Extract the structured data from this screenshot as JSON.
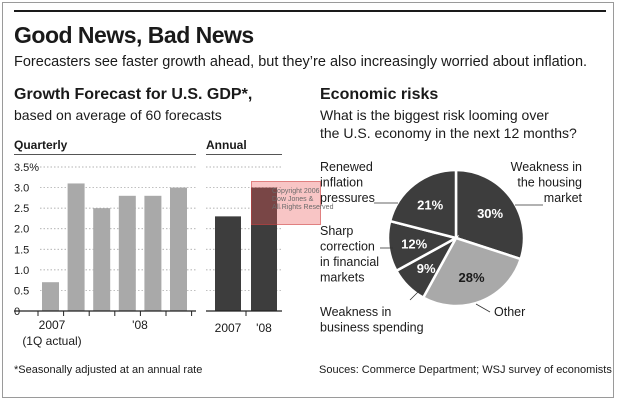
{
  "header": {
    "title": "Good News, Bad News",
    "subtitle": "Forecasters see faster growth ahead, but they’re also increasingly worried about inflation."
  },
  "gdp": {
    "title": "Growth Forecast for U.S. GDP*,",
    "subtitle": "based on average of 60 forecasts",
    "quarterly_label": "Quarterly",
    "annual_label": "Annual",
    "y_ticks": [
      "3.5%",
      "3.0",
      "2.5",
      "2.0",
      "1.5",
      "1.0",
      "0.5",
      "0"
    ],
    "footnote": "*Seasonally adjusted at an annual rate"
  },
  "risks": {
    "title": "Economic risks",
    "question_line1": "What is the biggest risk looming over",
    "question_line2": "the U.S. economy in the next 12 months?",
    "source": "Souces: Commerce Department; WSJ survey of economists"
  },
  "watermark": {
    "lines": [
      "Copyright 2006",
      "Dow Jones &",
      "All Rights Reserved"
    ]
  },
  "colors": {
    "quarterly_bar": "#a9a9a9",
    "annual_bar": "#3d3d3d",
    "pie_dark": "#3d3d3d",
    "pie_mid": "#a9a9a9",
    "text": "#1a1a1a"
  },
  "chart_data": [
    {
      "type": "bar",
      "panel": "Quarterly",
      "categories": [
        "",
        "",
        "",
        "",
        "",
        ""
      ],
      "x_tick_labels": [
        "2007",
        "(1Q actual)",
        "'08"
      ],
      "values": [
        0.7,
        3.1,
        2.5,
        2.8,
        2.8,
        3.0
      ],
      "ylim": [
        0,
        3.5
      ]
    },
    {
      "type": "bar",
      "panel": "Annual",
      "categories": [
        "2007",
        "'08"
      ],
      "values": [
        2.3,
        3.0
      ],
      "ylim": [
        0,
        3.5
      ]
    },
    {
      "type": "pie",
      "slices": [
        {
          "label": "Weakness in the housing market",
          "lines": [
            "Weakness in",
            "the housing",
            "market"
          ],
          "value": 30,
          "display": "30%"
        },
        {
          "label": "Other",
          "lines": [
            "Other"
          ],
          "value": 28,
          "display": "28%"
        },
        {
          "label": "Weakness in business spending",
          "lines": [
            "Weakness in",
            "business spending"
          ],
          "value": 9,
          "display": "9%"
        },
        {
          "label": "Sharp correction in financial markets",
          "lines": [
            "Sharp",
            "correction",
            "in financial",
            "markets"
          ],
          "value": 12,
          "display": "12%"
        },
        {
          "label": "Renewed inflation pressures",
          "lines": [
            "Renewed",
            "inflation",
            "pressures"
          ],
          "value": 21,
          "display": "21%"
        }
      ]
    }
  ]
}
